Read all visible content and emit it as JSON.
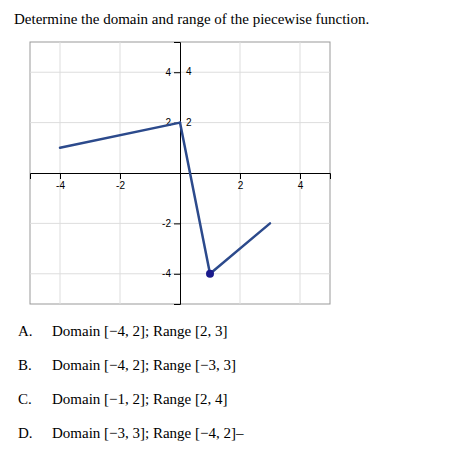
{
  "chart_data": {
    "type": "line",
    "title": "Determine the domain and range of the piecewise function.",
    "series": [
      {
        "x": [
          -4,
          0
        ],
        "values": [
          1,
          2
        ],
        "color": "#2c4a8c"
      },
      {
        "x": [
          0,
          1
        ],
        "values": [
          2,
          -4
        ],
        "color": "#2c4a8c"
      },
      {
        "x": [
          1,
          3
        ],
        "values": [
          -4,
          -2
        ],
        "color": "#2c4a8c"
      },
      {
        "type": "scatter",
        "x": [
          1
        ],
        "values": [
          -4
        ],
        "color": "#1a1a8c",
        "marker": "circle"
      }
    ],
    "xlim": [
      -5,
      5
    ],
    "ylim": [
      -5.2,
      5.2
    ],
    "xticks": [
      -4,
      -2,
      2,
      4
    ],
    "yticks": [
      -4,
      -2,
      2,
      4
    ],
    "grid": true,
    "annotations": [
      {
        "text": "4",
        "y": 4
      },
      {
        "text": "2",
        "y": 2
      }
    ],
    "answer_options": [
      {
        "letter": "A.",
        "text": "Domain [−4, 2]; Range [2, 3]"
      },
      {
        "letter": "B.",
        "text": "Domain [−4, 2]; Range [−3, 3]"
      },
      {
        "letter": "C.",
        "text": "Domain [−1, 2]; Range [2, 4]"
      },
      {
        "letter": "D.",
        "text": "Domain [−3, 3]; Range [−4, 2]–"
      }
    ]
  }
}
